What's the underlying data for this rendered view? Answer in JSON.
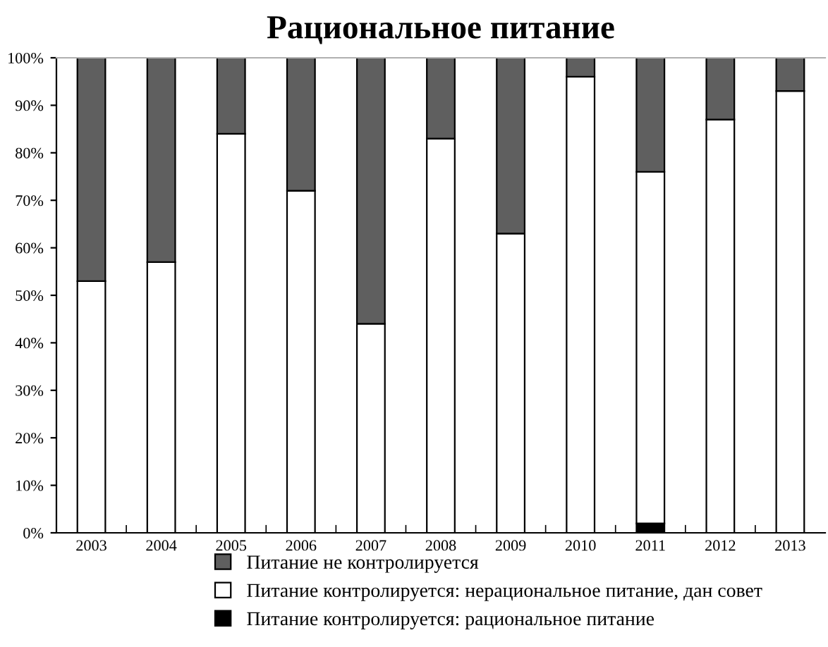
{
  "chart_data": {
    "type": "bar",
    "title": "Рациональное питание",
    "stacked": true,
    "categories": [
      "2003",
      "2004",
      "2005",
      "2006",
      "2007",
      "2008",
      "2009",
      "2010",
      "2011",
      "2012",
      "2013"
    ],
    "series": [
      {
        "name": "Питание контролируется: рациональное питание",
        "color": "#000000",
        "values": [
          0,
          0,
          0,
          0,
          0,
          0,
          0,
          0,
          2,
          0,
          0
        ]
      },
      {
        "name": "Питание контролируется: нерациональное питание, дан совет",
        "color": "#ffffff",
        "values": [
          53,
          57,
          84,
          72,
          44,
          83,
          63,
          96,
          74,
          87,
          93
        ]
      },
      {
        "name": "Питание не контролируется",
        "color": "#5f5f5f",
        "values": [
          47,
          43,
          16,
          28,
          56,
          17,
          37,
          4,
          24,
          13,
          7
        ]
      }
    ],
    "ylim": [
      0,
      100
    ],
    "yticks": [
      {
        "value": 0,
        "label": "0%"
      },
      {
        "value": 10,
        "label": "10%"
      },
      {
        "value": 20,
        "label": "20%"
      },
      {
        "value": 30,
        "label": "30%"
      },
      {
        "value": 40,
        "label": "40%"
      },
      {
        "value": 50,
        "label": "50%"
      },
      {
        "value": 60,
        "label": "60%"
      },
      {
        "value": 70,
        "label": "70%"
      },
      {
        "value": 80,
        "label": "80%"
      },
      {
        "value": 90,
        "label": "90%"
      },
      {
        "value": 100,
        "label": "100%"
      }
    ],
    "grid": false,
    "legend": "bottom"
  }
}
